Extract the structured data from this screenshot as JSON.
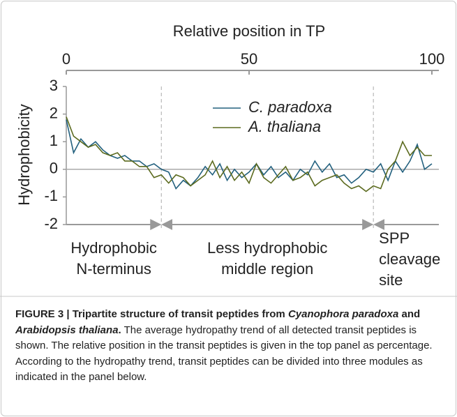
{
  "chart_data": {
    "type": "line",
    "title": "Relative position in TP",
    "ylabel": "Hydrophobicity",
    "x": [
      0,
      2,
      4,
      6,
      8,
      10,
      12,
      14,
      16,
      18,
      20,
      22,
      24,
      26,
      28,
      30,
      32,
      34,
      36,
      38,
      40,
      42,
      44,
      46,
      48,
      50,
      52,
      54,
      56,
      58,
      60,
      62,
      64,
      66,
      68,
      70,
      72,
      74,
      76,
      78,
      80,
      82,
      84,
      86,
      88,
      90,
      92,
      94,
      96,
      98,
      100
    ],
    "series": [
      {
        "name": "C. paradoxa",
        "color": "#22607e",
        "values": [
          1.8,
          0.6,
          1.1,
          0.8,
          1.0,
          0.7,
          0.5,
          0.4,
          0.5,
          0.3,
          0.3,
          0.1,
          0.2,
          0.0,
          -0.1,
          -0.7,
          -0.4,
          -0.6,
          -0.3,
          0.1,
          -0.2,
          0.2,
          -0.4,
          0.0,
          -0.3,
          -0.1,
          0.2,
          -0.2,
          0.1,
          -0.3,
          -0.1,
          -0.4,
          0.0,
          -0.2,
          0.3,
          -0.1,
          0.2,
          -0.3,
          -0.2,
          -0.5,
          -0.3,
          0.0,
          -0.1,
          0.2,
          -0.4,
          0.3,
          -0.1,
          0.3,
          0.9,
          0.0,
          0.2
        ]
      },
      {
        "name": "A. thaliana",
        "color": "#5b6a1e",
        "values": [
          1.9,
          1.2,
          1.0,
          0.8,
          0.9,
          0.6,
          0.5,
          0.6,
          0.3,
          0.3,
          0.1,
          0.1,
          -0.3,
          -0.2,
          -0.5,
          -0.2,
          -0.3,
          -0.6,
          -0.4,
          -0.2,
          0.3,
          -0.3,
          0.1,
          -0.4,
          -0.1,
          -0.5,
          0.2,
          -0.3,
          -0.5,
          -0.2,
          0.1,
          -0.4,
          -0.3,
          -0.1,
          -0.6,
          -0.4,
          -0.3,
          -0.2,
          -0.5,
          -0.7,
          -0.6,
          -0.8,
          -0.6,
          -0.7,
          0.0,
          0.3,
          1.0,
          0.5,
          0.8,
          0.5,
          0.5
        ]
      }
    ],
    "xlim": [
      0,
      100
    ],
    "xticks": [
      0,
      50,
      100
    ],
    "ylim": [
      -2,
      3
    ],
    "yticks": [
      3,
      2,
      1,
      0,
      -1,
      -2
    ],
    "regions": [
      {
        "label": [
          "Hydrophobic",
          "N-terminus"
        ],
        "start": 0,
        "end": 26
      },
      {
        "label": [
          "Less hydrophobic",
          "middle region"
        ],
        "start": 26,
        "end": 84
      },
      {
        "label": [
          "SPP",
          "cleavage",
          "site"
        ],
        "start": 84,
        "end": 100
      }
    ]
  },
  "caption": [
    {
      "text": "FIGURE 3 | Tripartite structure of transit peptides from ",
      "style": "bold"
    },
    {
      "text": "Cyanophora paradoxa",
      "style": "bold-italic"
    },
    {
      "text": " and ",
      "style": "bold"
    },
    {
      "text": "Arabidopsis thaliana",
      "style": "bold-italic"
    },
    {
      "text": ".",
      "style": "bold"
    },
    {
      "text": " The average hydropathy trend of all detected transit peptides is shown. The relative position in the transit peptides is given in the top panel as percentage. According to the hydropathy trend, transit peptides can be divided into three modules as indicated in the panel below.",
      "style": "normal"
    }
  ]
}
